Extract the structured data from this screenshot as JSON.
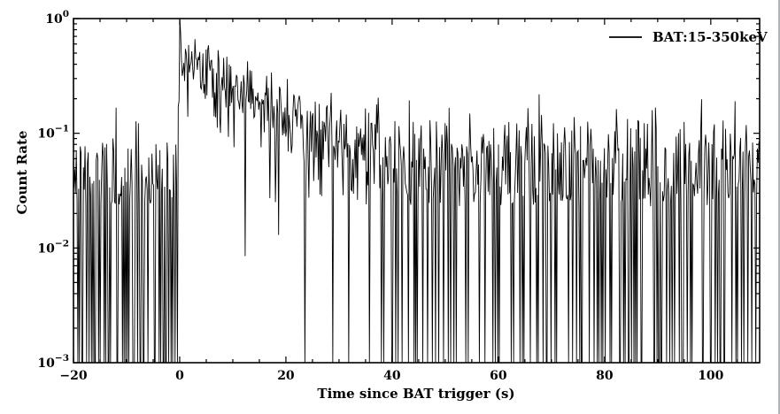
{
  "chart_data": {
    "type": "line",
    "title": "",
    "xlabel": "Time since BAT trigger (s)",
    "ylabel": "Count Rate",
    "xlim": [
      -20,
      109.2
    ],
    "ylim_log": [
      0.001,
      1.0
    ],
    "x_ticks": [
      -20,
      0,
      20,
      40,
      60,
      80,
      100
    ],
    "x_minor_step": 5,
    "y_tick_exponents": [
      0,
      -1,
      -2,
      -3
    ],
    "grid": false,
    "legend": {
      "label": "BAT:15-350keV",
      "color": "#000000",
      "position": "upper right"
    },
    "series": [
      {
        "name": "BAT:15-350keV",
        "color": "#000000",
        "line_width": 0.9,
        "bin_width_s": 0.15,
        "counts_scale": 32,
        "noise": {
          "model": "poisson",
          "seed": 11,
          "jitter": 0.3
        },
        "forced_points": [
          [
            0.02,
            1.0
          ],
          [
            12.4,
            0.0085
          ],
          [
            18.6,
            0.013
          ]
        ],
        "envelope": [
          [
            -20,
            0.034
          ],
          [
            -1,
            0.034
          ],
          [
            -0.4,
            0.05
          ],
          [
            -0.12,
            0.3
          ],
          [
            0.02,
            1.0
          ],
          [
            0.25,
            0.52
          ],
          [
            1.5,
            0.47
          ],
          [
            3,
            0.4
          ],
          [
            5,
            0.34
          ],
          [
            7,
            0.3
          ],
          [
            9,
            0.27
          ],
          [
            11,
            0.235
          ],
          [
            13,
            0.21
          ],
          [
            15,
            0.185
          ],
          [
            17,
            0.165
          ],
          [
            19,
            0.15
          ],
          [
            21,
            0.135
          ],
          [
            23,
            0.12
          ],
          [
            25,
            0.108
          ],
          [
            27,
            0.098
          ],
          [
            29,
            0.09
          ],
          [
            32,
            0.08
          ],
          [
            35,
            0.072
          ],
          [
            38,
            0.063
          ],
          [
            41,
            0.052
          ],
          [
            44,
            0.042
          ],
          [
            47,
            0.04
          ],
          [
            50,
            0.05
          ],
          [
            53,
            0.058
          ],
          [
            56,
            0.06
          ],
          [
            59,
            0.055
          ],
          [
            63,
            0.05
          ],
          [
            68,
            0.048
          ],
          [
            73,
            0.047
          ],
          [
            78,
            0.047
          ],
          [
            84,
            0.045
          ],
          [
            90,
            0.044
          ],
          [
            96,
            0.044
          ],
          [
            102,
            0.043
          ],
          [
            109.2,
            0.042
          ]
        ]
      }
    ],
    "colors": {
      "line": "#000000",
      "spine": "#000000",
      "background": "#ffffff",
      "window_edge": "#aeb4b8"
    }
  }
}
